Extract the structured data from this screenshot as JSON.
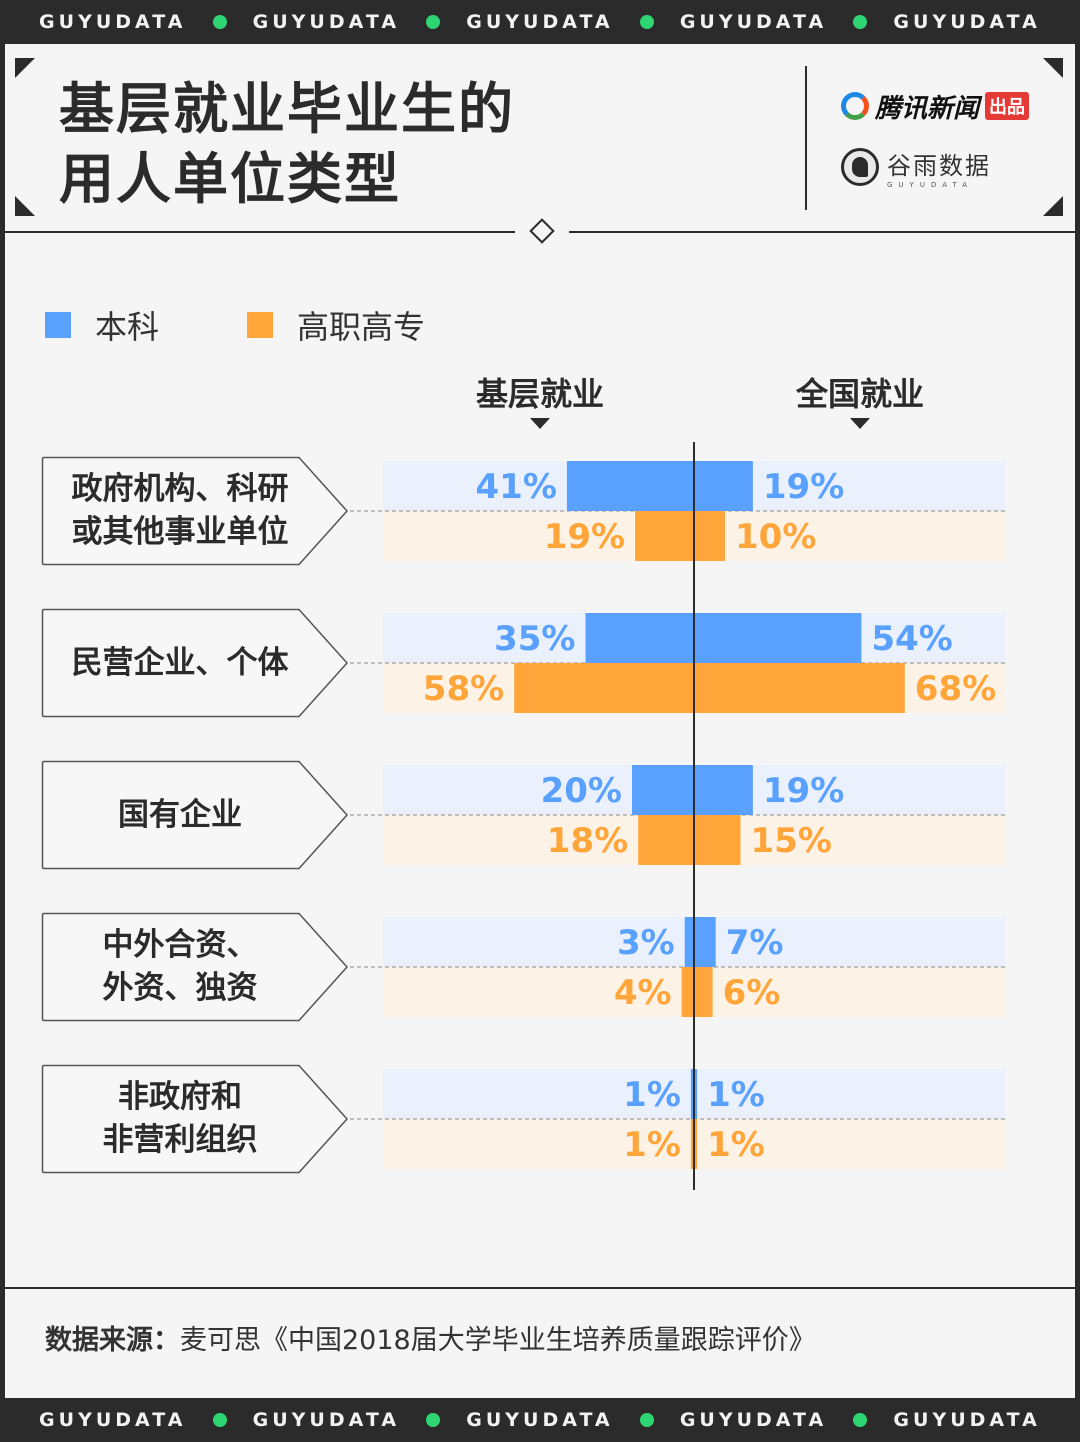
{
  "brand_strip": {
    "word": "GUYUDATA",
    "count": 5,
    "dot_color": "#2ed573"
  },
  "title_lines": [
    "基层就业毕业生的",
    "用人单位类型"
  ],
  "brands": {
    "tencent": "腾讯新闻",
    "tencent_tag": "出品",
    "guyu": "谷雨数据",
    "guyu_sub": "GUYUDATA"
  },
  "legend": [
    {
      "label": "本科",
      "color": "#5aa0ff"
    },
    {
      "label": "高职高专",
      "color": "#ffa53a"
    }
  ],
  "columns": {
    "left": "基层就业",
    "right": "全国就业"
  },
  "chart_data": {
    "type": "bar",
    "orientation": "horizontal-diverging",
    "categories": [
      "政府机构、科研\n或其他事业单位",
      "民营企业、个体",
      "国有企业",
      "中外合资、\n外资、独资",
      "非政府和\n非营利组织"
    ],
    "series": [
      {
        "name": "本科",
        "group": "基层就业",
        "values": [
          41,
          35,
          20,
          3,
          1
        ],
        "color": "#5aa0ff"
      },
      {
        "name": "本科",
        "group": "全国就业",
        "values": [
          19,
          54,
          19,
          7,
          1
        ],
        "color": "#5aa0ff"
      },
      {
        "name": "高职高专",
        "group": "基层就业",
        "values": [
          19,
          58,
          18,
          4,
          1
        ],
        "color": "#ffa53a"
      },
      {
        "name": "高职高专",
        "group": "全国就业",
        "values": [
          10,
          68,
          15,
          6,
          1
        ],
        "color": "#ffa53a"
      }
    ],
    "value_suffix": "%",
    "xlim": [
      0,
      70
    ]
  },
  "source": {
    "label": "数据来源：",
    "text": "麦可思《中国2018届大学毕业生培养质量跟踪评价》"
  }
}
